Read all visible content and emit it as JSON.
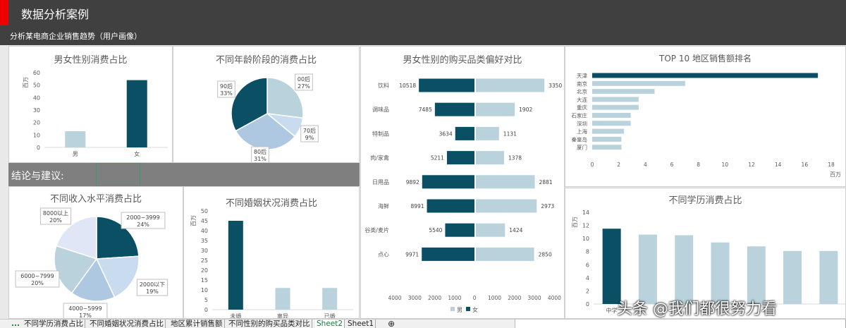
{
  "header": {
    "title": "数据分析案例",
    "subtitle": "分析某电商企业销售趋势（用户画像）"
  },
  "conclusion": {
    "label": "结论与建议:"
  },
  "colors": {
    "dark": "#0b4f65",
    "light": "#b9d2dc",
    "mid": "#aec8e2",
    "pale": "#c8dbef",
    "lavender": "#e1e6f7"
  },
  "chart_data": [
    {
      "id": "gender",
      "type": "bar",
      "title": "男女性别消费占比",
      "ylabel": "百万",
      "categories": [
        "男",
        "女"
      ],
      "values": [
        13,
        54
      ],
      "ylim": [
        0,
        60
      ],
      "yticks": [
        "0",
        "10",
        "20",
        "30",
        "40",
        "50",
        "60"
      ]
    },
    {
      "id": "age",
      "type": "pie",
      "title": "不同年龄阶段的消费占比",
      "slices": [
        {
          "label": "00后",
          "pct": "27%",
          "value": 27
        },
        {
          "label": "70后",
          "pct": "9%",
          "value": 9
        },
        {
          "label": "80后",
          "pct": "31%",
          "value": 31
        },
        {
          "label": "90后",
          "pct": "33%",
          "value": 33
        }
      ]
    },
    {
      "id": "category",
      "type": "bar",
      "title": "男女性别的购买品类偏好对比",
      "categories": [
        "饮料",
        "调味品",
        "特制品",
        "肉/家禽",
        "日用品",
        "海鲜",
        "谷类/麦片",
        "点心"
      ],
      "series": [
        {
          "name": "男",
          "values": [
            3350,
            1902,
            1131,
            1378,
            2881,
            2973,
            1424,
            2850
          ]
        },
        {
          "name": "女",
          "values": [
            10518,
            7485,
            3634,
            5211,
            9892,
            8991,
            5540,
            9971
          ]
        }
      ],
      "xticks": [
        "4000",
        "3000",
        "2000",
        "1000",
        "0",
        "1000",
        "2000",
        "3000",
        "4000"
      ]
    },
    {
      "id": "region",
      "type": "bar",
      "title": "TOP 10 地区销售额排名",
      "xlabel": "百万",
      "categories": [
        "天津",
        "南京",
        "北京",
        "大连",
        "重庆",
        "石家庄",
        "深圳",
        "上海",
        "秦皇岛",
        "厦门"
      ],
      "values": [
        17,
        7,
        4.7,
        3.5,
        3.5,
        2.9,
        2.9,
        2.4,
        2.2,
        2.2
      ],
      "xlim": [
        0,
        18
      ],
      "xticks": [
        "0",
        "2",
        "4",
        "6",
        "8",
        "10",
        "12",
        "14",
        "16",
        "18"
      ]
    },
    {
      "id": "income",
      "type": "pie",
      "title": "不同收入水平消费占比",
      "slices": [
        {
          "label": "2000~3999",
          "pct": "24%",
          "value": 24
        },
        {
          "label": "2000以下",
          "pct": "19%",
          "value": 19
        },
        {
          "label": "4000~5999",
          "pct": "17%",
          "value": 17
        },
        {
          "label": "6000~7999",
          "pct": "20%",
          "value": 20
        },
        {
          "label": "8000以上",
          "pct": "20%",
          "value": 20
        }
      ]
    },
    {
      "id": "marriage",
      "type": "bar",
      "title": "不同婚姻状况消费占比",
      "ylabel": "百万",
      "categories": [
        "未婚",
        "离异",
        "已婚"
      ],
      "values": [
        45,
        11,
        11
      ],
      "ylim": [
        0,
        50
      ],
      "yticks": [
        "0",
        "5",
        "10",
        "15",
        "20",
        "25",
        "30",
        "35",
        "40",
        "45",
        "50"
      ]
    },
    {
      "id": "education",
      "type": "bar",
      "title": "不同学历消费占比",
      "ylabel": "百万",
      "categories": [
        "中学",
        "",
        "",
        "",
        "",
        "",
        ""
      ],
      "values": [
        11.5,
        10.6,
        10.5,
        9.4,
        8.8,
        8.1,
        8.1
      ],
      "ylim": [
        0,
        14
      ],
      "yticks": [
        "0",
        "2",
        "4",
        "6",
        "8",
        "10",
        "12",
        "14"
      ]
    }
  ],
  "sheet_tabs": {
    "ellipsis": "...",
    "items": [
      "不同学历消费占比",
      "不同婚姻状况消费占比",
      "地区累计销售额",
      "不同性别的购买品类对比",
      "Sheet2",
      "Sheet1"
    ],
    "add": "⊕"
  },
  "watermark": "头条 @我们都很努力看"
}
